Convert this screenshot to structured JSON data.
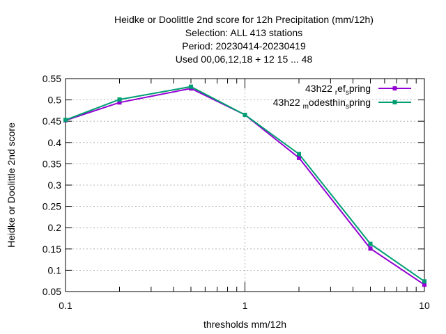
{
  "chart_data": {
    "type": "line",
    "title_lines": [
      "Heidke or Doolittle 2nd score  for 12h Precipitation (mm/12h)",
      "Selection: ALL     413 stations",
      "Period: 20230414-20230419",
      "Used  00,06,12,18  + 12 15 ... 48"
    ],
    "xlabel": "thresholds mm/12h",
    "ylabel": "Heidke or Doolittle 2nd score",
    "xscale": "log",
    "xlim": [
      0.1,
      10
    ],
    "ylim": [
      0.05,
      0.55
    ],
    "xticks": [
      0.1,
      1,
      10
    ],
    "xtick_labels": [
      "0.1",
      "1",
      "10"
    ],
    "yticks": [
      0.05,
      0.1,
      0.15,
      0.2,
      0.25,
      0.3,
      0.35,
      0.4,
      0.45,
      0.5,
      0.55
    ],
    "ytick_labels": [
      "0.05",
      "0.1",
      "0.15",
      "0.2",
      "0.25",
      "0.3",
      "0.35",
      "0.4",
      "0.45",
      "0.5",
      "0.55"
    ],
    "grid": true,
    "legend_position": "top-right",
    "x": [
      0.1,
      0.2,
      0.5,
      1,
      2,
      5,
      10
    ],
    "series": [
      {
        "legend_parts": [
          "43h22 ",
          "r",
          "ef",
          "s",
          "pring"
        ],
        "color": "#9400d3",
        "values": [
          0.452,
          0.494,
          0.527,
          0.465,
          0.364,
          0.151,
          0.066
        ]
      },
      {
        "legend_parts": [
          "43h22 ",
          "m",
          "odesthin",
          "s",
          "pring"
        ],
        "color": "#009e73",
        "values": [
          0.453,
          0.501,
          0.531,
          0.465,
          0.373,
          0.162,
          0.074
        ]
      }
    ]
  }
}
